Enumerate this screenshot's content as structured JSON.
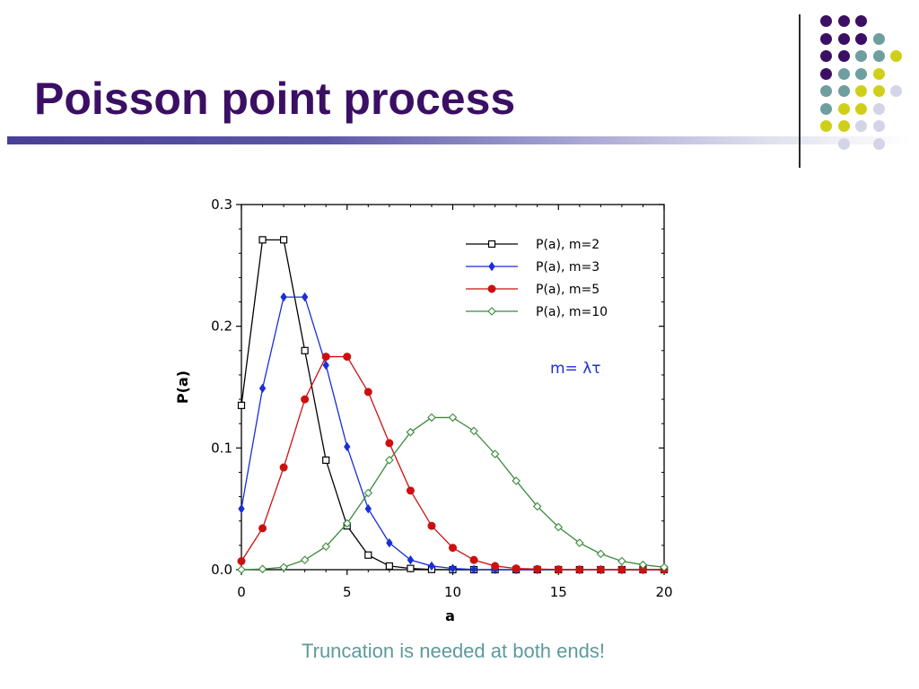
{
  "slide": {
    "title": "Poisson point process",
    "caption": "Truncation is needed at both ends!"
  },
  "decoration": {
    "dot_rows": [
      [
        "purple",
        "purple",
        "purple",
        null,
        null
      ],
      [
        "purple",
        "purple",
        "purple",
        "teal",
        null
      ],
      [
        "purple",
        "purple",
        "teal",
        "teal",
        "yellow"
      ],
      [
        "purple",
        "teal",
        "teal",
        "yellow",
        null
      ],
      [
        "teal",
        "teal",
        "yellow",
        "yellow",
        "lavender"
      ],
      [
        "teal",
        "yellow",
        "yellow",
        "lavender",
        null
      ],
      [
        "yellow",
        "yellow",
        "lavender",
        "lavender",
        null
      ],
      [
        null,
        "lavender",
        null,
        "lavender",
        null
      ]
    ],
    "colors": {
      "purple": "#3b0f64",
      "teal": "#6e9ea0",
      "yellow": "#cfcf19",
      "lavender": "#d4d4e8",
      "title": "#3b0f64",
      "caption": "#5e9a9c"
    }
  },
  "chart_data": {
    "type": "line",
    "title": "",
    "xlabel": "a",
    "ylabel": "P(a)",
    "xlim": [
      0,
      20
    ],
    "ylim": [
      0,
      0.3
    ],
    "x_ticks": [
      "0",
      "5",
      "10",
      "15",
      "20"
    ],
    "y_ticks": [
      "0.0",
      "0.1",
      "0.2",
      "0.3"
    ],
    "grid": false,
    "legend_position": "top-right",
    "annotation": "m= λτ",
    "x": [
      0,
      1,
      2,
      3,
      4,
      5,
      6,
      7,
      8,
      9,
      10,
      11,
      12,
      13,
      14,
      15,
      16,
      17,
      18,
      19,
      20
    ],
    "series": [
      {
        "name": "P(a), m=2",
        "color": "#000000",
        "marker": "open-square",
        "values": [
          0.135,
          0.271,
          0.271,
          0.18,
          0.09,
          0.036,
          0.012,
          0.003,
          0.001,
          0.0002,
          0.0,
          0,
          0,
          0,
          0,
          0,
          0,
          0,
          0,
          0,
          0
        ]
      },
      {
        "name": "P(a), m=3",
        "color": "#1a2ed8",
        "marker": "filled-diamond",
        "values": [
          0.05,
          0.149,
          0.224,
          0.224,
          0.168,
          0.101,
          0.05,
          0.022,
          0.008,
          0.003,
          0.001,
          0.0002,
          0.0001,
          0,
          0,
          0,
          0,
          0,
          0,
          0,
          0
        ]
      },
      {
        "name": "P(a), m=5",
        "color": "#cc1010",
        "marker": "filled-circle",
        "values": [
          0.007,
          0.034,
          0.084,
          0.14,
          0.175,
          0.175,
          0.146,
          0.104,
          0.065,
          0.036,
          0.018,
          0.008,
          0.003,
          0.001,
          0.0005,
          0.0002,
          0,
          0,
          0,
          0,
          0
        ]
      },
      {
        "name": "P(a), m=10",
        "color": "#3a8a3a",
        "marker": "open-diamond",
        "values": [
          0.0,
          0.0005,
          0.002,
          0.008,
          0.019,
          0.038,
          0.063,
          0.09,
          0.113,
          0.125,
          0.125,
          0.114,
          0.095,
          0.073,
          0.052,
          0.035,
          0.022,
          0.013,
          0.007,
          0.004,
          0.002
        ]
      }
    ]
  }
}
